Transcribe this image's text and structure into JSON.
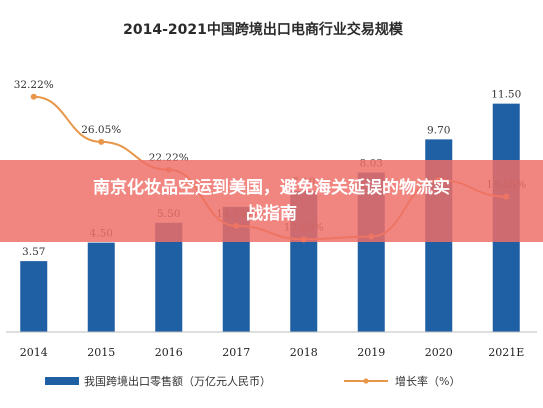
{
  "chart_data": {
    "type": "bar",
    "title": "2014-2021中国跨境出口电商行业交易规模",
    "categories": [
      "2014",
      "2015",
      "2016",
      "2017",
      "2018",
      "2019",
      "2020",
      "2021E"
    ],
    "bar_series": {
      "name": "我国跨境出口零售额（万亿元人民币）",
      "values": [
        3.57,
        4.5,
        5.5,
        6.3,
        7.1,
        8.03,
        9.7,
        11.5
      ],
      "labels": [
        "3.57",
        "4.50",
        "5.50",
        "",
        "7.10",
        "8.03",
        "9.70",
        "11.50"
      ],
      "color": "#1f5fa3"
    },
    "line_series": {
      "name": "增长率（%）",
      "values": [
        32.22,
        26.05,
        22.22,
        14.54,
        12.69,
        13.09,
        20.8,
        18.55
      ],
      "labels": [
        "32.22%",
        "26.05%",
        "22.22%",
        "14.54%",
        "12.69%",
        "",
        "",
        "18.55%"
      ],
      "color": "#e8964a"
    },
    "ylim_bar": [
      0,
      14
    ],
    "ylim_line": [
      0,
      40
    ],
    "grid": false,
    "legend_position": "bottom"
  },
  "overlay": {
    "text": "南京化妆品空运到美国，避免海关延误的物流实战指南"
  }
}
